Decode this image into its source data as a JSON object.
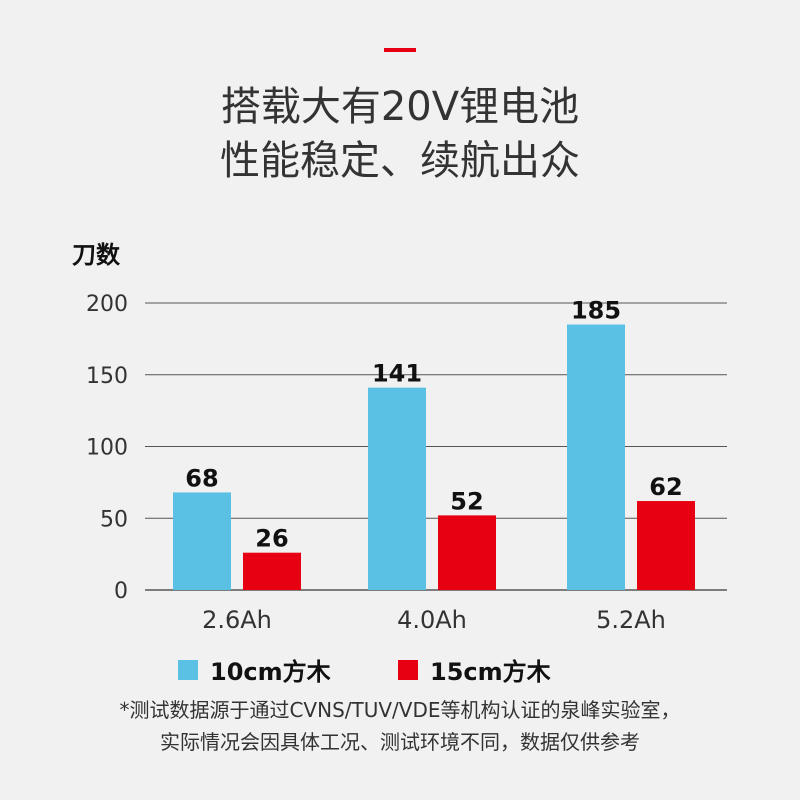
{
  "headline": {
    "line1": "搭载大有20V锂电池",
    "line2": "性能稳定、续航出众"
  },
  "colors": {
    "accent": "#e60012",
    "series1": "#5bc1e4",
    "series2": "#e60012",
    "grid": "#555555",
    "text": "#333333"
  },
  "chart_data": {
    "type": "bar",
    "ylabel": "刀数",
    "xlabel": "",
    "categories": [
      "2.6Ah",
      "4.0Ah",
      "5.2Ah"
    ],
    "series": [
      {
        "name": "10cm方木",
        "values": [
          68,
          141,
          185
        ]
      },
      {
        "name": "15cm方木",
        "values": [
          26,
          52,
          62
        ]
      }
    ],
    "ylim": [
      0,
      200
    ],
    "yticks": [
      0,
      50,
      100,
      150,
      200
    ],
    "grid": true,
    "legend": "bottom-center"
  },
  "footnote": {
    "line1": "*测试数据源于通过CVNS/TUV/VDE等机构认证的泉峰实验室，",
    "line2": "实际情况会因具体工况、测试环境不同，数据仅供参考"
  }
}
